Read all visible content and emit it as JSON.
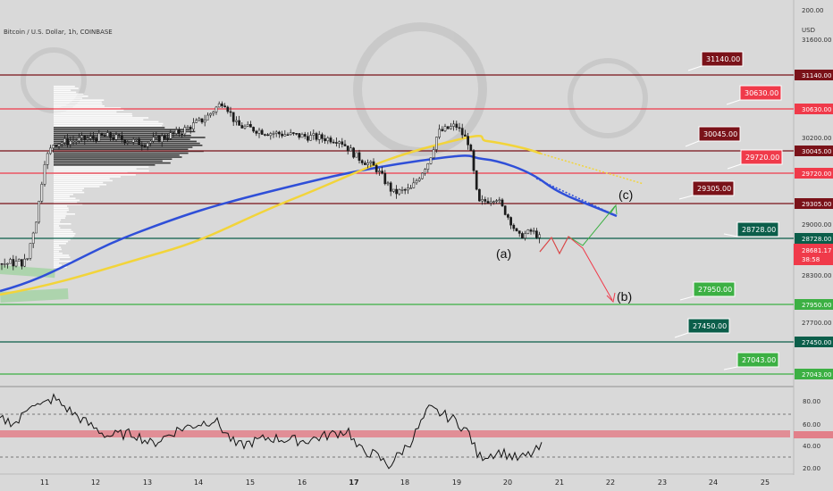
{
  "header": {
    "symbol": "Bitcoin / U.S. Dollar, 1h, COINBASE",
    "currency": "USD"
  },
  "price_axis": {
    "ticks": [
      "200.00",
      "31600.00",
      "31140.00",
      "30630.00",
      "30200.00",
      "30045.00",
      "29720.00",
      "29305.00",
      "29000.00",
      "28728.00",
      "28300.00",
      "27950.00",
      "27700.00",
      "27450.00",
      "27043.00"
    ],
    "current_price": "28681.17",
    "countdown": "38:58"
  },
  "rsi_axis": {
    "ticks": [
      "80.00",
      "60.00",
      "40.00",
      "20.00"
    ]
  },
  "time_axis": {
    "ticks": [
      "11",
      "12",
      "13",
      "14",
      "15",
      "16",
      "17",
      "18",
      "19",
      "20",
      "21",
      "22",
      "23",
      "24",
      "25"
    ]
  },
  "wave_labels": {
    "a": "(a)",
    "b": "(b)",
    "c": "(c)"
  },
  "colors": {
    "background": "#d9d9d9",
    "dark_red": "#7a1219",
    "red": "#f03a4a",
    "dark_green": "#0b5e4a",
    "green": "#3cb043",
    "ma_blue": "#2f4fd8",
    "ma_yellow": "#f2d43a",
    "candles": "#1a1a1a"
  },
  "chart_data": {
    "type": "candlestick",
    "y_range": [
      26900,
      31900
    ],
    "levels": [
      {
        "price": 31140.0,
        "label": "31140.00",
        "style": "dark_red"
      },
      {
        "price": 30630.0,
        "label": "30630.00",
        "style": "red"
      },
      {
        "price": 30045.0,
        "label": "30045.00",
        "style": "dark_red"
      },
      {
        "price": 29720.0,
        "label": "29720.00",
        "style": "red"
      },
      {
        "price": 29305.0,
        "label": "29305.00",
        "style": "dark_red"
      },
      {
        "price": 28728.0,
        "label": "28728.00",
        "style": "dark_green"
      },
      {
        "price": 27950.0,
        "label": "27950.00",
        "style": "green"
      },
      {
        "price": 27450.0,
        "label": "27450.00",
        "style": "dark_green"
      },
      {
        "price": 27043.0,
        "label": "27043.00",
        "style": "green"
      }
    ],
    "rsi": {
      "y_range": [
        15,
        95
      ],
      "bands": [
        70,
        30
      ],
      "zone": [
        48,
        52
      ]
    }
  }
}
